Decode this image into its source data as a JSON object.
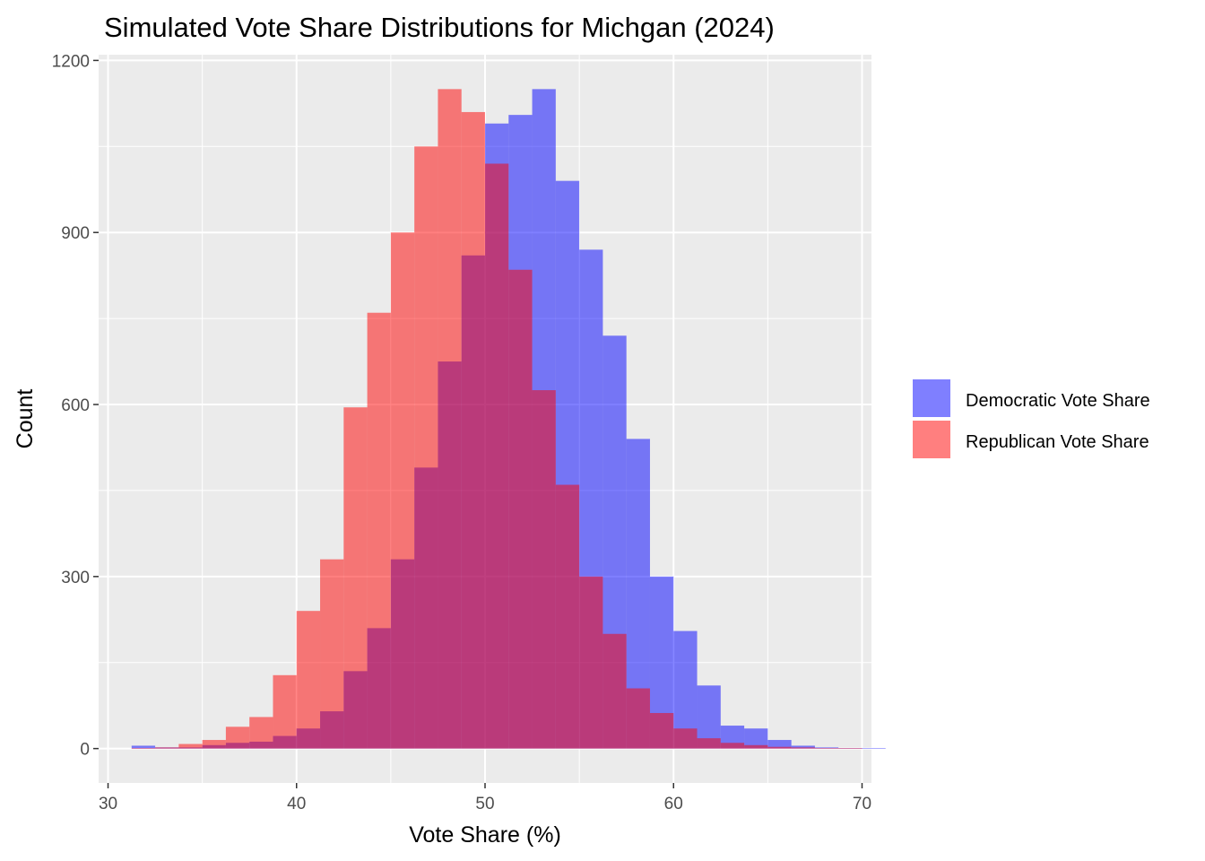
{
  "chart_data": {
    "type": "histogram",
    "title": "Simulated Vote Share Distributions for Michgan (2024)",
    "xlabel": "Vote Share (%)",
    "ylabel": "Count",
    "xlim": [
      29.5,
      70.5
    ],
    "ylim": [
      -60,
      1210
    ],
    "x_ticks": [
      30,
      40,
      50,
      60,
      70
    ],
    "y_ticks": [
      0,
      300,
      600,
      900,
      1200
    ],
    "bin_width": 1.25,
    "bin_start": 31.25,
    "grid": true,
    "legend_position": "right",
    "series": [
      {
        "name": "Democratic Vote Share",
        "color": "#0000ff",
        "opacity": 0.5,
        "values": [
          5,
          2,
          2,
          6,
          10,
          12,
          22,
          35,
          65,
          135,
          210,
          330,
          490,
          675,
          860,
          1090,
          1105,
          1150,
          990,
          870,
          720,
          540,
          300,
          205,
          110,
          40,
          35,
          15,
          5,
          2,
          1,
          1
        ]
      },
      {
        "name": "Republican Vote Share",
        "color": "#ff0000",
        "opacity": 0.5,
        "values": [
          1,
          2,
          8,
          15,
          38,
          55,
          128,
          240,
          330,
          595,
          760,
          900,
          1050,
          1150,
          1110,
          1020,
          835,
          625,
          460,
          300,
          200,
          105,
          62,
          35,
          18,
          10,
          6,
          3,
          2,
          1,
          1,
          0
        ]
      }
    ]
  }
}
